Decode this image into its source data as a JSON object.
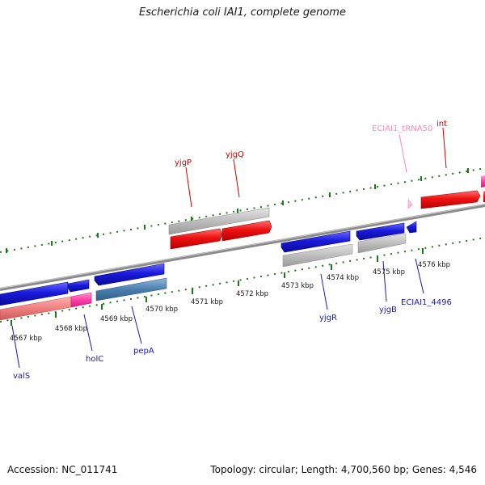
{
  "title": "Escherichia coli IAI1, complete genome",
  "footer": {
    "accession": "Accession: NC_011741",
    "summary": "Topology: circular; Length: 4,700,560 bp; Genes: 4,546"
  },
  "colors": {
    "backbone": "#8a8a8a",
    "tick": "#1a7a1a",
    "forward_cds": "#ee1111",
    "reverse_cds": "#1a1add",
    "gray_track": "#bbbbbb",
    "rrna_trna": "#ff69b4",
    "salmon_track": "#f08080",
    "steel_track": "#4a7fb0",
    "forward_label": "#cc0000",
    "reverse_label": "#1a1ab0",
    "trna_label": "#ff88bb"
  },
  "kbp_labels": [
    "4567 kbp",
    "4568 kbp",
    "4569 kbp",
    "4570 kbp",
    "4571 kbp",
    "4572 kbp",
    "4573 kbp",
    "4574 kbp",
    "4575 kbp",
    "4576 kbp"
  ],
  "forward_gene_labels": [
    "yjgP",
    "yjgQ",
    "int"
  ],
  "trna_label": "ECIAI1_tRNA50",
  "reverse_gene_labels": [
    "valS",
    "holC",
    "pepA",
    "yjgR",
    "yjgB",
    "ECIAI1_4496"
  ]
}
